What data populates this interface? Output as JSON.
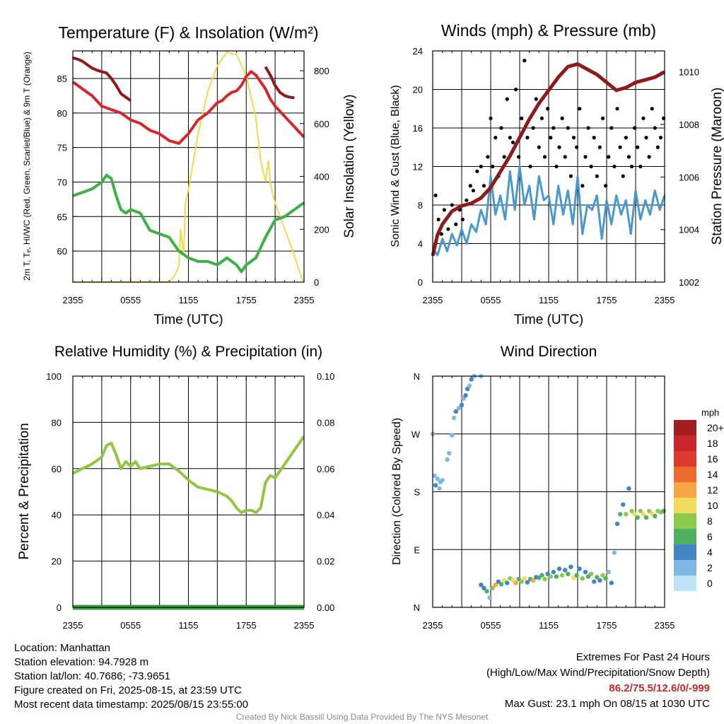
{
  "colors": {
    "red": "#d7262b",
    "maroon": "#8e1b1b",
    "green": "#3db043",
    "yellow": "#f2d84b",
    "blue": "#4a98d0",
    "black": "#000000",
    "rh_green": "#8fc740",
    "precip_green": "#3aa440",
    "highlight": "#c62828"
  },
  "chart_data": [
    {
      "id": "temp",
      "type": "line",
      "title": "Temperature (F) & Insolation (W/m²)",
      "xlabel": "Time (UTC)",
      "ylabel_left": "2m T, Tₑ, HI/WC (Red, Green, Scarlet/Blue) & 9m T (Orange)",
      "ylabel_right": "Solar Insolation (Yellow)",
      "x_ticklabels": [
        "2355",
        "0555",
        "1155",
        "1755",
        "2355"
      ],
      "x_range_hours": [
        0,
        24
      ],
      "ylim_left": [
        55.5,
        89
      ],
      "yticks_left": [
        60,
        65,
        70,
        75,
        80,
        85
      ],
      "ylim_right": [
        0,
        875
      ],
      "yticks_right": [
        0,
        200,
        400,
        600,
        800
      ],
      "grid": true,
      "series": [
        {
          "color": "red",
          "axis": "left",
          "x": [
            0,
            1,
            2,
            3,
            4,
            5,
            6,
            7,
            8,
            9,
            10,
            11,
            12,
            13,
            14,
            15,
            15.5,
            16,
            16.5,
            17,
            17.5,
            18,
            18.5,
            19,
            19.5,
            20,
            20.5,
            21,
            22,
            23,
            24
          ],
          "y": [
            84.5,
            83.5,
            82.5,
            81,
            80.5,
            80,
            79,
            78.5,
            77.5,
            77,
            76,
            75.6,
            77,
            79,
            80,
            81.5,
            81.8,
            82.5,
            83,
            83.2,
            84,
            85.3,
            86,
            85.5,
            84.5,
            83.5,
            82,
            81,
            79.5,
            78,
            76.5
          ]
        },
        {
          "color": "maroon",
          "axis": "left",
          "x": [
            0,
            0.5,
            1,
            1.5,
            2,
            2.5,
            3,
            3.5,
            4,
            4.5,
            5,
            5.5,
            6
          ],
          "y": [
            88,
            87.8,
            87.5,
            87,
            86.5,
            86.2,
            86,
            85.8,
            85,
            84,
            82.8,
            82.3,
            81.8
          ]
        },
        {
          "color": "maroon",
          "axis": "left",
          "x": [
            20,
            20.5,
            21,
            21.5,
            22,
            22.5,
            23
          ],
          "y": [
            86.7,
            85.5,
            84,
            83,
            82.5,
            82.3,
            82.2
          ]
        },
        {
          "color": "green",
          "axis": "left",
          "x": [
            0,
            1,
            2,
            3,
            3.5,
            4,
            4.5,
            5,
            5.5,
            6,
            7,
            8,
            9,
            10,
            10.5,
            11,
            12,
            13,
            14,
            15,
            16,
            17,
            17.5,
            18,
            18.5,
            19,
            19.5,
            20,
            21,
            22,
            23,
            24
          ],
          "y": [
            68,
            68.5,
            69,
            70,
            71,
            70.5,
            68,
            66,
            65.5,
            66,
            65.5,
            63,
            62.5,
            62,
            61,
            60,
            59,
            58.5,
            58.5,
            58,
            59,
            58,
            57,
            58,
            58.5,
            59,
            60.5,
            62,
            64.5,
            65,
            66,
            67
          ]
        }
      ],
      "insolation": {
        "color": "yellow",
        "axis": "right",
        "x": [
          0,
          9.5,
          10,
          10.5,
          11,
          11.2,
          11.5,
          11.7,
          12,
          13,
          14,
          15,
          16,
          17,
          18,
          19,
          19.5,
          20,
          20.3,
          20.5,
          20.7,
          21,
          22,
          23,
          23.7,
          24
        ],
        "y": [
          0,
          0,
          0,
          20,
          60,
          200,
          100,
          300,
          350,
          560,
          720,
          820,
          870,
          860,
          780,
          620,
          460,
          380,
          460,
          380,
          340,
          300,
          200,
          100,
          20,
          0
        ]
      }
    },
    {
      "id": "wind",
      "type": "line",
      "title": "Winds (mph) & Pressure (mb)",
      "xlabel": "Time (UTC)",
      "ylabel_left": "Sonic Wind & Gust (Blue, Black)",
      "ylabel_right": "Station Pressure (Maroon)",
      "x_ticklabels": [
        "2355",
        "0555",
        "1155",
        "1755",
        "2355"
      ],
      "x_range_hours": [
        0,
        24
      ],
      "ylim_left": [
        0,
        24
      ],
      "yticks_left": [
        0,
        4,
        8,
        12,
        16,
        20,
        24
      ],
      "ylim_right": [
        1002,
        1010.8
      ],
      "yticks_right": [
        1002,
        1004,
        1006,
        1008,
        1010
      ],
      "grid": true,
      "wind_series": {
        "color": "blue",
        "axis": "left",
        "x": [
          0,
          0.5,
          1,
          1.5,
          2,
          2.5,
          3,
          3.5,
          4,
          4.5,
          5,
          5.5,
          6,
          6.5,
          7,
          7.5,
          8,
          8.5,
          9,
          9.5,
          10,
          10.5,
          11,
          11.5,
          12,
          12.5,
          13,
          13.5,
          14,
          14.5,
          15,
          15.5,
          16,
          16.5,
          17,
          17.5,
          18,
          18.5,
          19,
          19.5,
          20,
          20.5,
          21,
          21.5,
          22,
          22.5,
          23,
          23.5,
          24
        ],
        "y": [
          3.5,
          2.8,
          4.5,
          3.2,
          5,
          3.8,
          5.5,
          4,
          6,
          5.2,
          7.5,
          6,
          11,
          7,
          9,
          6.5,
          11.5,
          7.5,
          12,
          8,
          10,
          6.5,
          11,
          8.5,
          9,
          6,
          10,
          7,
          9.5,
          6,
          11,
          5,
          8,
          7.5,
          9,
          4.5,
          8.5,
          6,
          9,
          7,
          8.5,
          5,
          9.5,
          6.5,
          8.5,
          7,
          9.5,
          7.5,
          9
        ]
      },
      "gust_points": {
        "color": "black",
        "axis": "left",
        "x": [
          0.3,
          0.6,
          0.9,
          1.2,
          1.6,
          2.0,
          2.4,
          2.8,
          3.1,
          3.5,
          3.9,
          4.2,
          4.6,
          5.0,
          5.3,
          5.7,
          6.0,
          6.2,
          6.5,
          6.8,
          7.1,
          7.4,
          7.7,
          8.0,
          8.3,
          8.6,
          8.9,
          9.2,
          9.5,
          9.8,
          10.1,
          10.4,
          10.7,
          11.0,
          11.3,
          11.6,
          11.9,
          12.2,
          12.5,
          12.8,
          13.1,
          13.4,
          13.7,
          14.0,
          14.3,
          14.6,
          14.9,
          15.2,
          15.5,
          15.8,
          16.1,
          16.4,
          16.7,
          17.0,
          17.3,
          17.6,
          17.9,
          18.2,
          18.5,
          18.8,
          19.1,
          19.4,
          19.7,
          20.0,
          20.3,
          20.6,
          20.9,
          21.2,
          21.5,
          21.8,
          22.1,
          22.4,
          22.7,
          23.0,
          23.3,
          23.6,
          23.9
        ],
        "y": [
          9,
          6.5,
          5,
          7.5,
          5.5,
          8,
          6,
          7.5,
          6.5,
          8.5,
          10,
          9.5,
          11.5,
          12,
          10,
          13,
          17,
          12,
          15,
          11,
          16,
          13,
          19,
          15,
          14.5,
          20,
          13,
          17,
          23,
          15,
          12,
          16,
          19,
          14,
          17,
          13,
          18,
          15,
          16,
          12,
          14,
          17,
          13,
          16,
          11,
          15,
          14,
          18,
          10,
          13,
          16,
          12,
          15,
          11,
          14,
          17,
          10,
          13,
          16,
          12,
          18,
          14,
          11,
          15,
          13,
          12,
          16,
          14,
          12,
          17,
          15,
          13,
          18,
          16,
          14,
          15,
          17
        ]
      },
      "pressure_series": {
        "color": "maroon",
        "axis": "right",
        "x": [
          0,
          0.5,
          1,
          2,
          3,
          4,
          5,
          6,
          7,
          8,
          9,
          10,
          11,
          12,
          13,
          14,
          15,
          16,
          17,
          18,
          19,
          20,
          21,
          22,
          23,
          24
        ],
        "y": [
          1003,
          1003.8,
          1004.2,
          1004.7,
          1004.9,
          1005,
          1005.2,
          1005.6,
          1006.2,
          1006.8,
          1007.5,
          1008.2,
          1008.8,
          1009.3,
          1009.8,
          1010.2,
          1010.3,
          1010.1,
          1009.9,
          1009.6,
          1009.3,
          1009.4,
          1009.6,
          1009.7,
          1009.8,
          1010
        ]
      },
      "max_gust_label": null
    },
    {
      "id": "rh",
      "type": "line",
      "title": "Relative Humidity (%) & Precipitation (in)",
      "xlabel": "",
      "ylabel_left": "Percent & Precipitation",
      "x_ticklabels": [
        "2355",
        "0555",
        "1155",
        "1755",
        "2355"
      ],
      "x_range_hours": [
        0,
        24
      ],
      "ylim_left": [
        0,
        100
      ],
      "yticks_left": [
        0,
        20,
        40,
        60,
        80,
        100
      ],
      "ylim_right": [
        0,
        0.1
      ],
      "yticks_right": [
        "0.00",
        "0.02",
        "0.04",
        "0.06",
        "0.08",
        "0.10"
      ],
      "grid": true,
      "rh_series": {
        "color": "rh_green",
        "x": [
          0,
          1,
          2,
          3,
          3.5,
          4,
          4.5,
          5,
          5.5,
          6,
          6.5,
          7,
          8,
          9,
          10,
          11,
          12,
          13,
          14,
          15,
          16,
          16.5,
          17,
          17.5,
          18,
          18.5,
          19,
          19.5,
          20,
          20.5,
          21,
          22,
          23,
          23.5,
          24
        ],
        "y": [
          58,
          60,
          62,
          65,
          70,
          71,
          66,
          60,
          63,
          61,
          63,
          60,
          61,
          62,
          62,
          59,
          55,
          52,
          51,
          50,
          48,
          46,
          43,
          41,
          42,
          42,
          41,
          43,
          54,
          57,
          56,
          62,
          68,
          71,
          74
        ]
      },
      "precip_series": {
        "color": "precip_green",
        "x": [
          0,
          24
        ],
        "y": [
          0,
          0
        ]
      }
    },
    {
      "id": "wdir",
      "type": "scatter",
      "title": "Wind Direction",
      "xlabel": "",
      "ylabel_left": "Direction (Colored By Speed)",
      "x_ticklabels": [
        "2355",
        "0555",
        "1155",
        "1755",
        "2355"
      ],
      "x_range_hours": [
        0,
        24
      ],
      "yticks_labels": [
        "N",
        "E",
        "S",
        "W",
        "N"
      ],
      "ylim_deg": [
        0,
        360
      ],
      "grid": true,
      "colorbar": {
        "title": "mph",
        "labels": [
          "20+",
          "18",
          "16",
          "14",
          "12",
          "10",
          "8",
          "6",
          "4",
          "2",
          "0"
        ],
        "colors": [
          "#a21d1f",
          "#c9252b",
          "#e03a30",
          "#ef6a2d",
          "#f7a545",
          "#efdc5a",
          "#8cc94d",
          "#4faf62",
          "#3f86c2",
          "#7eb8e4",
          "#c0e2f7"
        ]
      },
      "points": [
        [
          0.0,
          270,
          2
        ],
        [
          0.2,
          205,
          3
        ],
        [
          0.3,
          190,
          4
        ],
        [
          0.5,
          200,
          2
        ],
        [
          0.7,
          185,
          3
        ],
        [
          0.8,
          195,
          3
        ],
        [
          1.0,
          198,
          2
        ],
        [
          1.5,
          230,
          2
        ],
        [
          1.7,
          240,
          3
        ],
        [
          2.0,
          268,
          2
        ],
        [
          2.2,
          295,
          3
        ],
        [
          2.4,
          305,
          4
        ],
        [
          2.7,
          310,
          2
        ],
        [
          3.0,
          315,
          4
        ],
        [
          3.2,
          325,
          3
        ],
        [
          3.4,
          330,
          4
        ],
        [
          3.6,
          340,
          5
        ],
        [
          3.8,
          345,
          3
        ],
        [
          4.0,
          355,
          4
        ],
        [
          4.3,
          360,
          3
        ],
        [
          5.0,
          360,
          2
        ],
        [
          5.0,
          35,
          5
        ],
        [
          5.3,
          30,
          4
        ],
        [
          5.6,
          25,
          6
        ],
        [
          5.9,
          15,
          3
        ],
        [
          6.2,
          30,
          9
        ],
        [
          6.5,
          35,
          12
        ],
        [
          6.8,
          40,
          4
        ],
        [
          7.1,
          36,
          7
        ],
        [
          7.4,
          42,
          11
        ],
        [
          7.7,
          38,
          5
        ],
        [
          8.0,
          45,
          9
        ],
        [
          8.3,
          42,
          10
        ],
        [
          8.6,
          38,
          12
        ],
        [
          8.9,
          44,
          6
        ],
        [
          9.2,
          40,
          8
        ],
        [
          9.5,
          45,
          11
        ],
        [
          9.8,
          39,
          5
        ],
        [
          10.1,
          44,
          7
        ],
        [
          10.4,
          42,
          13
        ],
        [
          10.7,
          47,
          4
        ],
        [
          11.0,
          46,
          7
        ],
        [
          11.3,
          50,
          6
        ],
        [
          11.6,
          44,
          9
        ],
        [
          11.9,
          52,
          5
        ],
        [
          12.2,
          48,
          8
        ],
        [
          12.5,
          55,
          4
        ],
        [
          12.8,
          48,
          6
        ],
        [
          13.1,
          60,
          5
        ],
        [
          13.4,
          50,
          8
        ],
        [
          13.7,
          58,
          4
        ],
        [
          14.0,
          52,
          7
        ],
        [
          14.3,
          63,
          5
        ],
        [
          14.6,
          46,
          10
        ],
        [
          14.9,
          50,
          6
        ],
        [
          15.2,
          60,
          4
        ],
        [
          15.5,
          45,
          9
        ],
        [
          15.8,
          55,
          5
        ],
        [
          16.1,
          48,
          6
        ],
        [
          16.4,
          52,
          8
        ],
        [
          16.7,
          40,
          4
        ],
        [
          17.0,
          47,
          7
        ],
        [
          17.3,
          42,
          5
        ],
        [
          17.6,
          50,
          9
        ],
        [
          17.9,
          45,
          6
        ],
        [
          18.2,
          55,
          3
        ],
        [
          18.5,
          38,
          4
        ],
        [
          18.8,
          85,
          3
        ],
        [
          19.1,
          130,
          4
        ],
        [
          19.4,
          145,
          7
        ],
        [
          19.7,
          160,
          5
        ],
        [
          20.0,
          145,
          9
        ],
        [
          20.3,
          185,
          5
        ],
        [
          20.6,
          150,
          8
        ],
        [
          20.9,
          145,
          11
        ],
        [
          21.2,
          140,
          6
        ],
        [
          21.5,
          150,
          8
        ],
        [
          21.8,
          145,
          10
        ],
        [
          22.1,
          140,
          7
        ],
        [
          22.4,
          150,
          9
        ],
        [
          22.7,
          146,
          11
        ],
        [
          23.0,
          142,
          6
        ],
        [
          23.3,
          150,
          8
        ],
        [
          23.6,
          148,
          9
        ],
        [
          23.9,
          150,
          7
        ]
      ]
    }
  ],
  "info": {
    "location": "Location: Manhattan",
    "elevation": "Station elevation: 94.7928 m",
    "latlon": "Station lat/lon: 40.7686; -73.9651",
    "created": "Figure created on Fri, 2025-08-15, at 23:59 UTC",
    "recent": "Most recent data timestamp: 2025/08/15 23:55:00"
  },
  "extremes": {
    "title": "Extremes For Past 24 Hours",
    "subtitle": "(High/Low/Max Wind/Precipitation/Snow Depth)",
    "values": "86.2/75.5/12.6/0/-999",
    "max_gust": "Max Gust: 23.1 mph On 08/15 at 1030 UTC"
  },
  "credit": "Created By Nick Bassill Using Data Provided By The NYS Mesonet"
}
